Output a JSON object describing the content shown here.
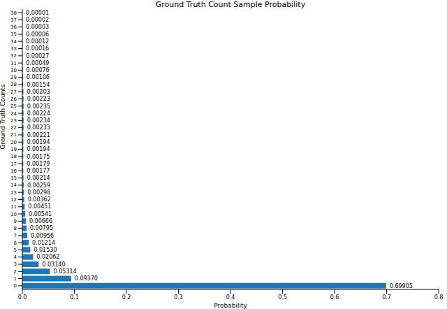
{
  "chart_data": {
    "type": "bar",
    "orientation": "horizontal",
    "title": "Ground Truth Count Sample Probability",
    "x_label": "Probability",
    "y_label": "Ground Truth Counts",
    "categories": [
      "0",
      "1",
      "2",
      "3",
      "4",
      "5",
      "6",
      "7",
      "8",
      "9",
      "10",
      "11",
      "12",
      "13",
      "14",
      "15",
      "16",
      "17",
      "18",
      "19",
      "20",
      "21",
      "22",
      "23",
      "24",
      "25",
      "26",
      "27",
      "28",
      "29",
      "30",
      "31",
      "32",
      "33",
      "34",
      "35",
      "36",
      "37",
      "38"
    ],
    "values": [
      0.69905,
      0.0937,
      0.05314,
      0.0314,
      0.02062,
      0.0153,
      0.01214,
      0.00956,
      0.00795,
      0.00666,
      0.00541,
      0.00451,
      0.00362,
      0.00298,
      0.00259,
      0.00214,
      0.00177,
      0.00179,
      0.00175,
      0.00194,
      0.00194,
      0.00221,
      0.00233,
      0.00234,
      0.00224,
      0.00235,
      0.00223,
      0.00203,
      0.00154,
      0.00106,
      0.00076,
      0.00049,
      0.00027,
      0.00016,
      0.00012,
      6e-05,
      3e-05,
      2e-05,
      1e-05
    ],
    "value_labels": [
      "0.69905",
      "0.09370",
      "0.05314",
      "0.03140",
      "0.02062",
      "0.01530",
      "0.01214",
      "0.00956",
      "0.00795",
      "0.00666",
      "0.00541",
      "0.00451",
      "0.00362",
      "0.00298",
      "0.00259",
      "0.00214",
      "0.00177",
      "0.00179",
      "0.00175",
      "0.00194",
      "0.00194",
      "0.00221",
      "0.00233",
      "0.00234",
      "0.00224",
      "0.00235",
      "0.00223",
      "0.00203",
      "0.00154",
      "0.00106",
      "0.00076",
      "0.00049",
      "0.00027",
      "0.00016",
      "0.00012",
      "0.00006",
      "0.00003",
      "0.00002",
      "0.00001"
    ],
    "color": "#1f77b4",
    "xlim": [
      0,
      0.8
    ],
    "xticks": [
      {
        "value": 0,
        "label": "0.0"
      },
      0.1,
      0.2,
      0.3,
      0.4,
      0.5,
      0.6,
      0.7,
      0.8
    ],
    "data_labels": true,
    "grid": false
  }
}
